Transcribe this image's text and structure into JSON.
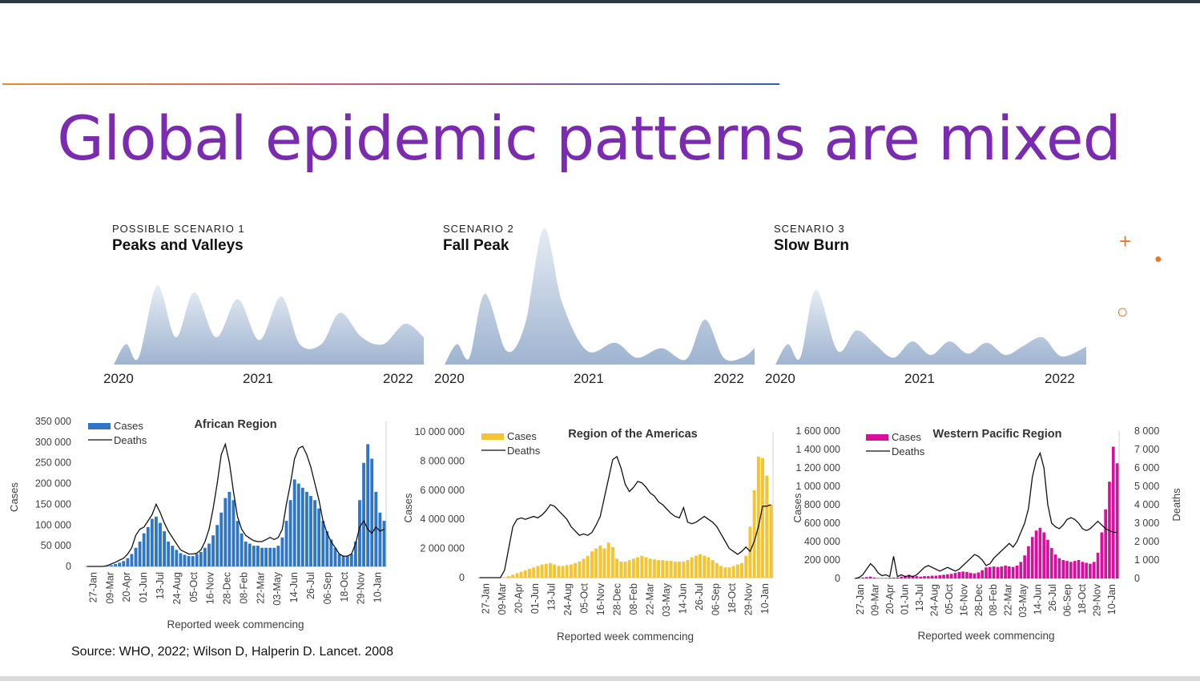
{
  "slide": {
    "title": "Global epidemic patterns are mixed",
    "source": "Source: WHO, 2022; Wilson D, Halperin D. Lancet. 2008",
    "accent_color": "#7b2bb0",
    "decorations": {
      "plus": "+",
      "dot": "●",
      "ring": "○"
    }
  },
  "scenarios": [
    {
      "label": "POSSIBLE SCENARIO 1",
      "name": "Peaks and Valleys",
      "years": [
        "2020",
        "2021",
        "2022"
      ]
    },
    {
      "label": "SCENARIO 2",
      "name": "Fall Peak",
      "years": [
        "2020",
        "2021",
        "2022"
      ]
    },
    {
      "label": "SCENARIO 3",
      "name": "Slow Burn",
      "years": [
        "2020",
        "2021",
        "2022"
      ]
    }
  ],
  "chart_data": [
    {
      "type": "area",
      "title": "Peaks and Valleys",
      "x_ticks": [
        "2020",
        "2021",
        "2022"
      ],
      "x": [
        0,
        0.04,
        0.08,
        0.14,
        0.2,
        0.26,
        0.33,
        0.4,
        0.47,
        0.54,
        0.6,
        0.67,
        0.73,
        0.8,
        0.87,
        0.94,
        1.0
      ],
      "y": [
        0.0,
        0.15,
        0.05,
        0.58,
        0.2,
        0.53,
        0.2,
        0.48,
        0.18,
        0.5,
        0.15,
        0.15,
        0.38,
        0.2,
        0.15,
        0.3,
        0.2
      ],
      "color": "#a9bdd6"
    },
    {
      "type": "area",
      "title": "Fall Peak",
      "x_ticks": [
        "2020",
        "2021",
        "2022"
      ],
      "x": [
        0,
        0.04,
        0.08,
        0.13,
        0.2,
        0.26,
        0.32,
        0.38,
        0.46,
        0.55,
        0.62,
        0.7,
        0.78,
        0.84,
        0.9,
        0.96,
        1.0
      ],
      "y": [
        0.0,
        0.15,
        0.05,
        0.52,
        0.1,
        0.3,
        1.0,
        0.45,
        0.1,
        0.16,
        0.05,
        0.12,
        0.04,
        0.33,
        0.05,
        0.05,
        0.12
      ],
      "color": "#a9bdd6"
    },
    {
      "type": "area",
      "title": "Slow Burn",
      "x_ticks": [
        "2020",
        "2021",
        "2022"
      ],
      "x": [
        0,
        0.04,
        0.08,
        0.13,
        0.2,
        0.26,
        0.32,
        0.38,
        0.44,
        0.5,
        0.56,
        0.62,
        0.68,
        0.74,
        0.8,
        0.86,
        0.92,
        1.0
      ],
      "y": [
        0.0,
        0.15,
        0.05,
        0.55,
        0.1,
        0.25,
        0.15,
        0.05,
        0.17,
        0.07,
        0.17,
        0.08,
        0.16,
        0.07,
        0.14,
        0.2,
        0.06,
        0.13
      ],
      "color": "#a9bdd6"
    },
    {
      "type": "bar",
      "title": "African Region",
      "xlabel": "Reported week commencing",
      "ylabel": "Cases",
      "ylim": [
        0,
        350000
      ],
      "y_ticks": [
        "350 000",
        "300 000",
        "250 000",
        "200 000",
        "150 000",
        "100 000",
        "50 000",
        "0"
      ],
      "x_ticks": [
        "27-Jan",
        "09-Mar",
        "20-Apr",
        "01-Jun",
        "13-Jul",
        "24-Aug",
        "05-Oct",
        "16-Nov",
        "28-Dec",
        "08-Feb",
        "22-Mar",
        "03-May",
        "14-Jun",
        "26-Jul",
        "06-Sep",
        "18-Oct",
        "29-Nov",
        "10-Jan"
      ],
      "legend": [
        "Cases",
        "Deaths"
      ],
      "series": [
        {
          "name": "Cases",
          "values": [
            0,
            0,
            0,
            0,
            0,
            1000,
            3000,
            6000,
            9000,
            13000,
            20000,
            30000,
            45000,
            60000,
            80000,
            95000,
            115000,
            120000,
            105000,
            85000,
            60000,
            50000,
            40000,
            32000,
            28000,
            25000,
            25000,
            30000,
            35000,
            45000,
            55000,
            75000,
            100000,
            130000,
            165000,
            180000,
            160000,
            110000,
            80000,
            60000,
            55000,
            50000,
            50000,
            45000,
            45000,
            45000,
            45000,
            50000,
            70000,
            110000,
            160000,
            210000,
            200000,
            190000,
            180000,
            170000,
            160000,
            140000,
            110000,
            85000,
            65000,
            45000,
            30000,
            25000,
            25000,
            30000,
            60000,
            160000,
            250000,
            295000,
            260000,
            180000,
            130000,
            110000
          ]
        },
        {
          "name": "Deaths",
          "values": [
            0,
            0,
            0,
            0,
            0,
            2000,
            6000,
            10000,
            15000,
            20000,
            30000,
            45000,
            75000,
            90000,
            95000,
            110000,
            125000,
            150000,
            130000,
            105000,
            85000,
            70000,
            55000,
            40000,
            35000,
            30000,
            30000,
            32000,
            40000,
            60000,
            90000,
            140000,
            200000,
            270000,
            295000,
            250000,
            180000,
            120000,
            90000,
            75000,
            68000,
            62000,
            60000,
            60000,
            65000,
            70000,
            65000,
            70000,
            90000,
            150000,
            200000,
            260000,
            285000,
            290000,
            270000,
            240000,
            200000,
            160000,
            110000,
            80000,
            60000,
            45000,
            30000,
            25000,
            25000,
            30000,
            55000,
            95000,
            110000,
            90000,
            80000,
            95000,
            85000,
            90000
          ]
        }
      ]
    },
    {
      "type": "bar",
      "title": "Region of the Americas",
      "xlabel": "Reported week commencing",
      "ylabel": "Cases",
      "ylim": [
        0,
        10000000
      ],
      "y_ticks": [
        "10 000 000",
        "8 000 000",
        "6 000 000",
        "4 000 000",
        "2 000 000",
        "0"
      ],
      "x_ticks": [
        "27-Jan",
        "09-Mar",
        "20-Apr",
        "01-Jun",
        "13-Jul",
        "24-Aug",
        "05-Oct",
        "16-Nov",
        "28-Dec",
        "08-Feb",
        "22-Mar",
        "03-May",
        "14-Jun",
        "26-Jul",
        "06-Sep",
        "18-Oct",
        "29-Nov",
        "10-Jan"
      ],
      "legend": [
        "Cases",
        "Deaths"
      ],
      "series": [
        {
          "name": "Cases",
          "values": [
            0,
            0,
            0,
            0,
            0,
            0,
            20000,
            100000,
            200000,
            300000,
            400000,
            500000,
            600000,
            700000,
            800000,
            900000,
            950000,
            1000000,
            900000,
            800000,
            800000,
            850000,
            900000,
            1000000,
            1100000,
            1300000,
            1500000,
            1800000,
            2000000,
            2200000,
            2000000,
            2400000,
            2100000,
            1300000,
            1100000,
            1100000,
            1200000,
            1300000,
            1400000,
            1500000,
            1400000,
            1300000,
            1250000,
            1200000,
            1200000,
            1150000,
            1150000,
            1100000,
            1100000,
            1100000,
            1200000,
            1400000,
            1500000,
            1600000,
            1500000,
            1400000,
            1200000,
            1000000,
            800000,
            700000,
            700000,
            800000,
            900000,
            1000000,
            1500000,
            3500000,
            6000000,
            8300000,
            8200000,
            7000000,
            5000000
          ]
        },
        {
          "name": "Deaths",
          "values": [
            0,
            0,
            0,
            0,
            0,
            0,
            500000,
            2000000,
            3500000,
            4000000,
            4100000,
            4000000,
            4100000,
            4200000,
            4100000,
            4300000,
            4600000,
            5000000,
            4900000,
            4600000,
            4300000,
            4000000,
            3500000,
            3200000,
            2900000,
            3000000,
            2900000,
            3100000,
            3600000,
            4200000,
            5500000,
            6800000,
            8100000,
            8300000,
            7500000,
            6400000,
            5900000,
            6200000,
            6600000,
            6500000,
            6200000,
            5800000,
            5600000,
            5200000,
            5000000,
            4700000,
            4400000,
            4200000,
            4100000,
            4800000,
            3800000,
            3700000,
            3800000,
            4000000,
            4200000,
            4000000,
            3800000,
            3500000,
            3000000,
            2500000,
            2000000,
            1800000,
            1600000,
            1800000,
            2100000,
            1800000,
            2500000,
            3500000,
            4900000,
            4900000,
            5000000
          ]
        }
      ]
    },
    {
      "type": "bar",
      "title": "Western Pacific Region",
      "xlabel": "Reported week commencing",
      "ylabel": "Cases",
      "y2label": "Deaths",
      "ylim": [
        0,
        1600000
      ],
      "y2lim": [
        0,
        8000
      ],
      "y_ticks": [
        "1 600 000",
        "1 400 000",
        "1 200 000",
        "1 000 000",
        "800 000",
        "600 000",
        "400 000",
        "200 000",
        "0"
      ],
      "y2_ticks": [
        "8 000",
        "7 000",
        "6 000",
        "5 000",
        "4 000",
        "3 000",
        "2 000",
        "1 000",
        "0"
      ],
      "x_ticks": [
        "27-Jan",
        "09-Mar",
        "20-Apr",
        "01-Jun",
        "13-Jul",
        "24-Aug",
        "05-Oct",
        "16-Nov",
        "28-Dec",
        "08-Feb",
        "22-Mar",
        "03-May",
        "14-Jun",
        "26-Jul",
        "06-Sep",
        "18-Oct",
        "29-Nov",
        "10-Jan"
      ],
      "legend": [
        "Cases",
        "Deaths"
      ],
      "series": [
        {
          "name": "Cases",
          "values": [
            0,
            5000,
            10000,
            15000,
            20000,
            10000,
            5000,
            5000,
            5000,
            8000,
            10000,
            10000,
            20000,
            30000,
            40000,
            30000,
            25000,
            20000,
            25000,
            25000,
            30000,
            30000,
            35000,
            40000,
            45000,
            50000,
            60000,
            70000,
            75000,
            70000,
            60000,
            55000,
            65000,
            90000,
            120000,
            125000,
            130000,
            125000,
            130000,
            140000,
            130000,
            125000,
            140000,
            180000,
            250000,
            350000,
            450000,
            520000,
            550000,
            500000,
            420000,
            330000,
            260000,
            220000,
            200000,
            190000,
            180000,
            190000,
            200000,
            180000,
            170000,
            160000,
            180000,
            280000,
            500000,
            750000,
            1050000,
            1430000,
            1250000
          ]
        },
        {
          "name": "Deaths",
          "values": [
            0,
            50,
            200,
            500,
            800,
            600,
            300,
            150,
            200,
            100,
            1200,
            100,
            200,
            100,
            150,
            100,
            200,
            400,
            600,
            700,
            600,
            500,
            400,
            500,
            600,
            500,
            400,
            500,
            700,
            900,
            1100,
            1300,
            1200,
            1000,
            700,
            800,
            1100,
            1300,
            1500,
            1700,
            1900,
            1700,
            2000,
            2500,
            3000,
            3800,
            5500,
            6400,
            6800,
            6000,
            4000,
            3000,
            2800,
            2700,
            2900,
            3200,
            3300,
            3200,
            3000,
            2700,
            2600,
            2700,
            2900,
            3100,
            2900,
            2700,
            2600,
            2500,
            2500
          ]
        }
      ]
    }
  ]
}
